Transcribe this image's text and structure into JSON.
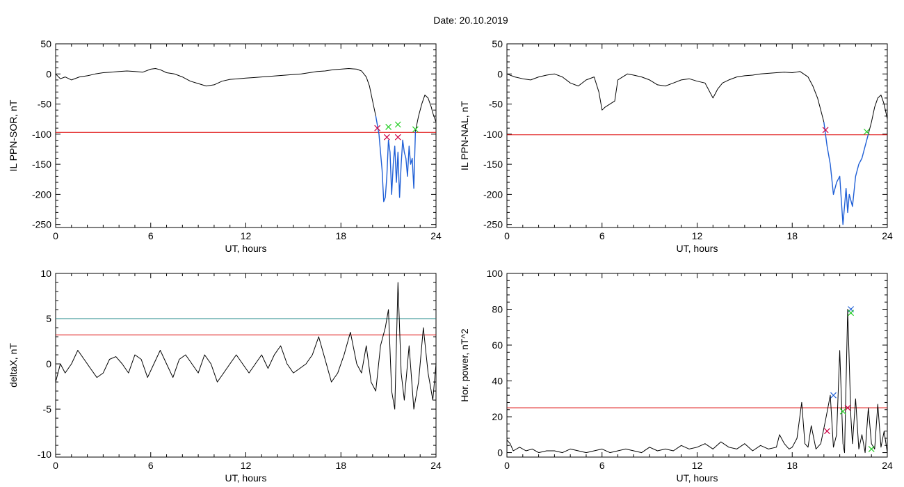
{
  "figure": {
    "title": "Date:  20.10.2019"
  },
  "chart_data": [
    {
      "type": "line",
      "ylabel": "IL PPN-SOR, nT",
      "xlabel": "UT, hours",
      "xlim": [
        0,
        24
      ],
      "ylim": [
        -255,
        50
      ],
      "xticks": [
        "0",
        "6",
        "12",
        "18",
        "24"
      ],
      "yticks": [
        "50",
        "0",
        "-50",
        "-100",
        "-150",
        "-200",
        "-250"
      ],
      "ytick_values": [
        50,
        0,
        -50,
        -100,
        -150,
        -200,
        -250
      ],
      "thresholds": [
        {
          "value": -97,
          "color": "#dd0000"
        }
      ],
      "series": [
        {
          "x": [
            0,
            0.3,
            0.6,
            1,
            1.5,
            2,
            2.5,
            3,
            3.5,
            4,
            4.5,
            5,
            5.5,
            6,
            6.3,
            6.6,
            7,
            7.5,
            8,
            8.5,
            9,
            9.5,
            10,
            10.5,
            11,
            11.5,
            12,
            12.5,
            13,
            13.5,
            14,
            14.5,
            15,
            15.5,
            16,
            16.5,
            17,
            17.5,
            18,
            18.5,
            19,
            19.3,
            19.6,
            19.8,
            20,
            20.2
          ],
          "y": [
            0,
            -8,
            -5,
            -10,
            -5,
            -3,
            0,
            2,
            3,
            4,
            5,
            4,
            3,
            8,
            9,
            7,
            2,
            0,
            -5,
            -12,
            -16,
            -20,
            -18,
            -12,
            -9,
            -8,
            -7,
            -6,
            -5,
            -4,
            -3,
            -2,
            -1,
            0,
            2,
            4,
            5,
            7,
            8,
            9,
            8,
            5,
            -5,
            -20,
            -45,
            -70
          ],
          "color": "#000000",
          "width": "thin"
        },
        {
          "x": [
            20.2,
            20.4,
            20.5,
            20.6,
            20.7,
            20.8,
            20.9,
            21,
            21.1,
            21.2,
            21.3,
            21.4,
            21.5,
            21.6,
            21.7,
            21.8,
            21.9,
            22,
            22.1,
            22.2,
            22.3,
            22.4,
            22.5,
            22.6,
            22.7
          ],
          "y": [
            -70,
            -100,
            -130,
            -160,
            -212,
            -205,
            -170,
            -110,
            -130,
            -200,
            -150,
            -120,
            -180,
            -130,
            -205,
            -150,
            -110,
            -130,
            -140,
            -170,
            -120,
            -150,
            -140,
            -190,
            -95
          ],
          "color": "#1f5fd6",
          "width": "thick"
        },
        {
          "x": [
            22.7,
            22.9,
            23.1,
            23.3,
            23.5,
            23.7,
            23.8,
            24
          ],
          "y": [
            -95,
            -70,
            -50,
            -35,
            -40,
            -55,
            -65,
            -80
          ],
          "color": "#000000",
          "width": "thin"
        }
      ],
      "markers": [
        {
          "x": 20.3,
          "y": -90,
          "color": "#cc0044"
        },
        {
          "x": 20.9,
          "y": -105,
          "color": "#cc0044"
        },
        {
          "x": 21.6,
          "y": -105,
          "color": "#cc0044"
        },
        {
          "x": 21.0,
          "y": -88,
          "color": "#22cc22"
        },
        {
          "x": 21.6,
          "y": -84,
          "color": "#22cc22"
        },
        {
          "x": 22.7,
          "y": -92,
          "color": "#22cc22"
        }
      ]
    },
    {
      "type": "line",
      "ylabel": "IL PPN-NAL, nT",
      "xlabel": "UT, hours",
      "xlim": [
        0,
        24
      ],
      "ylim": [
        -255,
        50
      ],
      "xticks": [
        "0",
        "6",
        "12",
        "18",
        "24"
      ],
      "yticks": [
        "50",
        "0",
        "-50",
        "-100",
        "-150",
        "-200",
        "-250"
      ],
      "ytick_values": [
        50,
        0,
        -50,
        -100,
        -150,
        -200,
        -250
      ],
      "thresholds": [
        {
          "value": -101,
          "color": "#dd0000"
        }
      ],
      "series": [
        {
          "x": [
            0,
            0.5,
            1,
            1.5,
            2,
            2.5,
            3,
            3.5,
            4,
            4.5,
            5,
            5.5,
            5.8,
            6,
            6.2,
            6.5,
            6.8,
            7,
            7.3,
            7.6,
            8,
            8.5,
            9,
            9.5,
            10,
            10.5,
            11,
            11.5,
            12,
            12.5,
            12.8,
            13,
            13.3,
            13.6,
            14,
            14.5,
            15,
            15.5,
            16,
            16.5,
            17,
            17.5,
            18,
            18.5,
            19,
            19.3,
            19.6,
            19.8,
            20
          ],
          "y": [
            0,
            -5,
            -8,
            -10,
            -5,
            -2,
            0,
            -5,
            -15,
            -20,
            -10,
            -5,
            -30,
            -60,
            -55,
            -50,
            -45,
            -10,
            -5,
            0,
            -2,
            -5,
            -10,
            -18,
            -20,
            -15,
            -10,
            -8,
            -12,
            -15,
            -30,
            -40,
            -25,
            -15,
            -10,
            -5,
            -3,
            -2,
            0,
            1,
            2,
            3,
            2,
            4,
            -5,
            -20,
            -40,
            -60,
            -80
          ],
          "color": "#000000",
          "width": "thin"
        },
        {
          "x": [
            20,
            20.2,
            20.4,
            20.6,
            20.8,
            21,
            21.2,
            21.4,
            21.5,
            21.6,
            21.8,
            22,
            22.2,
            22.4,
            22.6,
            22.8
          ],
          "y": [
            -80,
            -120,
            -150,
            -200,
            -180,
            -170,
            -250,
            -190,
            -230,
            -200,
            -220,
            -170,
            -150,
            -140,
            -120,
            -100
          ],
          "color": "#1f5fd6",
          "width": "thick"
        },
        {
          "x": [
            22.8,
            23,
            23.2,
            23.4,
            23.6,
            23.8,
            24
          ],
          "y": [
            -100,
            -80,
            -55,
            -40,
            -35,
            -50,
            -75
          ],
          "color": "#000000",
          "width": "thin"
        }
      ],
      "markers": [
        {
          "x": 20.1,
          "y": -93,
          "color": "#cc0044"
        },
        {
          "x": 22.7,
          "y": -96,
          "color": "#22cc22"
        }
      ]
    },
    {
      "type": "line",
      "ylabel": "deltaX, nT",
      "xlabel": "UT, hours",
      "xlim": [
        0,
        24
      ],
      "ylim": [
        -10.3,
        10
      ],
      "xticks": [
        "0",
        "6",
        "12",
        "18",
        "24"
      ],
      "yticks": [
        "10",
        "5",
        "0",
        "-5",
        "-10"
      ],
      "ytick_values": [
        10,
        5,
        0,
        -5,
        -10
      ],
      "thresholds": [
        {
          "value": 5,
          "color": "#228888"
        },
        {
          "value": 3.2,
          "color": "#dd0000"
        }
      ],
      "series": [
        {
          "x": [
            0,
            0.3,
            0.6,
            1,
            1.4,
            1.8,
            2.2,
            2.6,
            3,
            3.4,
            3.8,
            4.2,
            4.6,
            5,
            5.4,
            5.8,
            6.2,
            6.6,
            7,
            7.4,
            7.8,
            8.2,
            8.6,
            9,
            9.4,
            9.8,
            10.2,
            10.6,
            11,
            11.4,
            11.8,
            12.2,
            12.6,
            13,
            13.4,
            13.8,
            14.2,
            14.6,
            15,
            15.4,
            15.8,
            16.2,
            16.6,
            17,
            17.4,
            17.8,
            18.2,
            18.6,
            19,
            19.3,
            19.6,
            19.9,
            20.2,
            20.5,
            20.8,
            21,
            21.2,
            21.4,
            21.6,
            21.8,
            22,
            22.3,
            22.6,
            22.9,
            23.2,
            23.5,
            23.8,
            24
          ],
          "y": [
            -2,
            0,
            -1,
            0,
            1.5,
            0.5,
            -0.5,
            -1.5,
            -1,
            0.5,
            0.8,
            0,
            -1,
            1,
            0.5,
            -1.5,
            0,
            1.5,
            0,
            -1.5,
            0.5,
            1,
            0,
            -1,
            1,
            0,
            -2,
            -1,
            0,
            1,
            0,
            -1,
            0,
            1,
            -0.5,
            1,
            2,
            0,
            -1,
            -0.5,
            0,
            1,
            3,
            0.5,
            -2,
            -1,
            1,
            3.5,
            0,
            -1,
            2,
            -2,
            -3,
            2,
            4,
            6,
            -3,
            -5,
            9,
            -1,
            -4,
            2,
            -5,
            -2,
            4,
            -1,
            -4,
            0
          ],
          "color": "#000000",
          "width": "thin"
        }
      ],
      "markers": []
    },
    {
      "type": "line",
      "ylabel": "Hor. power, nT^2",
      "xlabel": "UT, hours",
      "xlim": [
        0,
        24
      ],
      "ylim": [
        -2.5,
        100
      ],
      "xticks": [
        "0",
        "6",
        "12",
        "18",
        "24"
      ],
      "yticks": [
        "100",
        "80",
        "60",
        "40",
        "20",
        "0"
      ],
      "ytick_values": [
        100,
        80,
        60,
        40,
        20,
        0
      ],
      "thresholds": [
        {
          "value": 25,
          "color": "#dd0000"
        }
      ],
      "series": [
        {
          "x": [
            0,
            0.2,
            0.4,
            0.8,
            1.2,
            1.6,
            2,
            2.5,
            3,
            3.5,
            4,
            4.5,
            5,
            5.5,
            6,
            6.5,
            7,
            7.5,
            8,
            8.5,
            9,
            9.5,
            10,
            10.5,
            11,
            11.5,
            12,
            12.5,
            13,
            13.5,
            14,
            14.5,
            15,
            15.5,
            16,
            16.5,
            17,
            17.2,
            17.5,
            17.8,
            18,
            18.3,
            18.6,
            18.8,
            19,
            19.2,
            19.5,
            19.8,
            20.1,
            20.4,
            20.6,
            20.8,
            21,
            21.2,
            21.3,
            21.5,
            21.7,
            21.8,
            22,
            22.2,
            22.4,
            22.6,
            22.8,
            23,
            23.2,
            23.4,
            23.6,
            23.8,
            24
          ],
          "y": [
            7,
            5,
            1,
            3,
            1,
            2,
            0,
            1,
            1,
            0,
            2,
            1,
            0,
            1,
            2,
            0,
            1,
            2,
            1,
            0,
            3,
            1,
            2,
            1,
            4,
            2,
            3,
            5,
            2,
            6,
            3,
            2,
            5,
            1,
            4,
            2,
            3,
            10,
            5,
            2,
            3,
            8,
            28,
            5,
            3,
            15,
            2,
            5,
            18,
            32,
            3,
            10,
            57,
            5,
            0,
            80,
            20,
            5,
            30,
            2,
            10,
            0,
            25,
            5,
            2,
            27,
            3,
            12,
            0
          ],
          "color": "#000000",
          "width": "thin"
        }
      ],
      "markers": [
        {
          "x": 20.6,
          "y": 32,
          "color": "#1f5fd6"
        },
        {
          "x": 21.7,
          "y": 80,
          "color": "#1f5fd6"
        },
        {
          "x": 20.2,
          "y": 12,
          "color": "#cc0044"
        },
        {
          "x": 21.5,
          "y": 25,
          "color": "#cc0044"
        },
        {
          "x": 21.2,
          "y": 23,
          "color": "#22cc22"
        },
        {
          "x": 21.7,
          "y": 78,
          "color": "#22cc22"
        },
        {
          "x": 23.0,
          "y": 2,
          "color": "#22cc22"
        }
      ]
    }
  ]
}
